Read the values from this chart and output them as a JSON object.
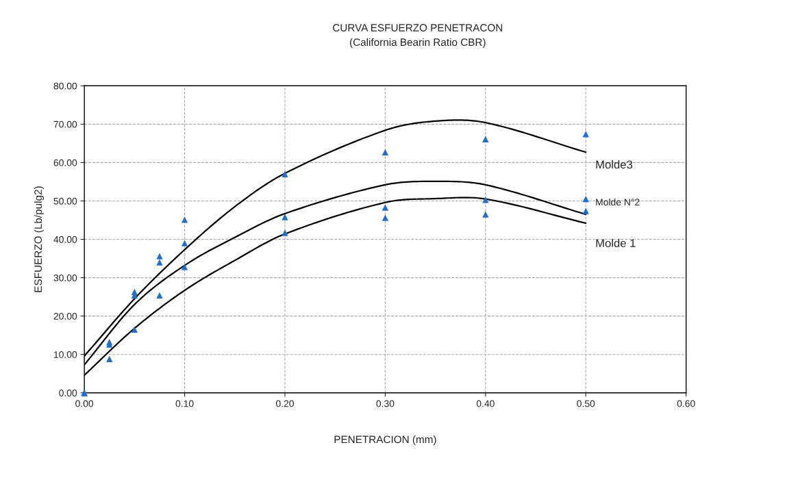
{
  "chart_data": {
    "type": "scatter",
    "title": "CURVA ESFUERZO PENETRACON",
    "subtitle": "(California Bearin Ratio CBR)",
    "xlabel": "PENETRACION (mm)",
    "ylabel": "ESFUERZO (Lb/pulg2)",
    "xlim": [
      0,
      0.6
    ],
    "xticks": [
      {
        "value": 0,
        "label": "0.00"
      },
      {
        "value": 0.1,
        "label": "0.10"
      },
      {
        "value": 0.2,
        "label": "0.20"
      },
      {
        "value": 0.3,
        "label": "0.30"
      },
      {
        "value": 0.4,
        "label": "0.40"
      },
      {
        "value": 0.5,
        "label": "0.50"
      },
      {
        "value": 0.6,
        "label": "0.60"
      }
    ],
    "ylim": [
      0,
      80
    ],
    "yticks": [
      {
        "value": 0,
        "label": "0.00"
      },
      {
        "value": 10,
        "label": "10.00"
      },
      {
        "value": 20,
        "label": "20.00"
      },
      {
        "value": 30,
        "label": "30.00"
      },
      {
        "value": 40,
        "label": "40.00"
      },
      {
        "value": 50,
        "label": "50.00"
      },
      {
        "value": 60,
        "label": "60.00"
      },
      {
        "value": 70,
        "label": "70.00"
      },
      {
        "value": 80,
        "label": "80.00"
      }
    ],
    "grid": true,
    "series": [
      {
        "marker": "triangle",
        "color": "#1f6fd1",
        "x": [
          0,
          0,
          0,
          0.025,
          0.025,
          0.025,
          0.05,
          0.05,
          0.05,
          0.075,
          0.075,
          0.075,
          0.1,
          0.1,
          0.1,
          0.2,
          0.2,
          0.2,
          0.3,
          0.3,
          0.3,
          0.4,
          0.4,
          0.4,
          0.5,
          0.5,
          0.5
        ],
        "values": [
          0,
          0,
          0,
          13.2,
          12.6,
          8.8,
          26.3,
          25.4,
          16.5,
          35.6,
          34.0,
          25.4,
          45.1,
          39.0,
          32.8,
          57.0,
          45.8,
          41.7,
          62.7,
          48.3,
          45.6,
          66.1,
          50.3,
          46.5,
          67.4,
          50.5,
          47.4
        ]
      },
      {
        "type": "line",
        "name": "Molde3",
        "color": "#000000",
        "x": [
          0,
          0.05,
          0.1,
          0.15,
          0.2,
          0.3,
          0.35,
          0.4,
          0.5
        ],
        "values": [
          9.6,
          24.5,
          37.3,
          48.5,
          57.2,
          68.4,
          70.8,
          70.4,
          62.7
        ]
      },
      {
        "type": "line",
        "name": "Molde N°2",
        "color": "#000000",
        "x": [
          0,
          0.05,
          0.1,
          0.15,
          0.2,
          0.3,
          0.35,
          0.4,
          0.5
        ],
        "values": [
          7.3,
          23.0,
          33.2,
          40.5,
          46.7,
          54.2,
          55.1,
          54.2,
          46.5
        ]
      },
      {
        "type": "line",
        "name": "Molde 1",
        "color": "#000000",
        "x": [
          0,
          0.05,
          0.1,
          0.15,
          0.2,
          0.3,
          0.35,
          0.4,
          0.5
        ],
        "values": [
          4.6,
          16.8,
          26.7,
          34.5,
          41.4,
          49.6,
          50.6,
          50.5,
          44.2
        ]
      }
    ]
  }
}
